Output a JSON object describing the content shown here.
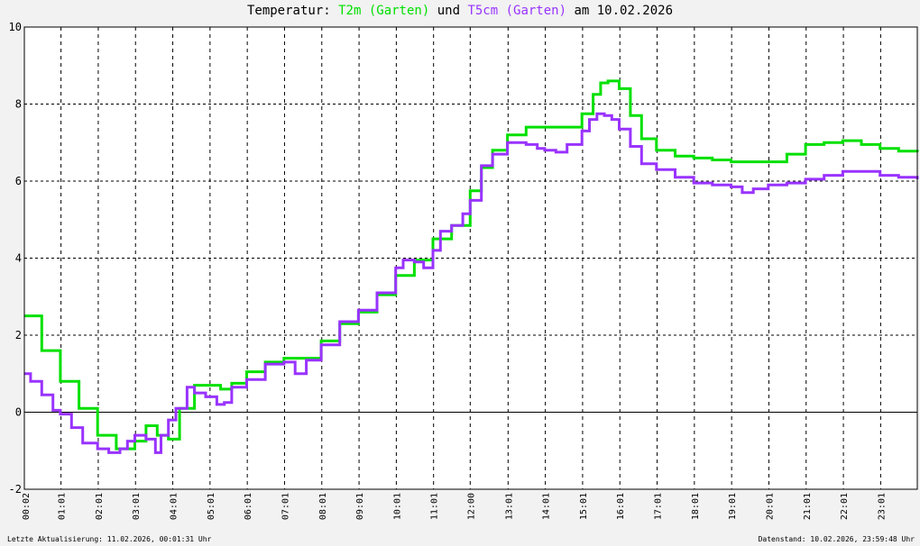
{
  "chart_data": {
    "type": "line",
    "title": {
      "prefix": "Temperatur: ",
      "series1": "T2m (Garten)",
      "middle": " und ",
      "series2": "T5cm (Garten)",
      "suffix": " am 10.02.2026"
    },
    "xlabel": "",
    "ylabel": "",
    "ylim": [
      -2,
      10
    ],
    "yticks": [
      -2,
      0,
      2,
      4,
      6,
      8,
      10
    ],
    "xlim": [
      0.0333,
      24.0
    ],
    "xtick_labels": [
      "00:02",
      "01:01",
      "02:01",
      "03:01",
      "04:01",
      "05:01",
      "06:01",
      "07:01",
      "08:01",
      "09:01",
      "10:01",
      "11:01",
      "12:00",
      "13:01",
      "14:01",
      "15:01",
      "16:01",
      "17:01",
      "18:01",
      "19:01",
      "20:01",
      "21:01",
      "22:01",
      "23:01"
    ],
    "xtick_hours": [
      0.0333,
      1.0167,
      2.0167,
      3.0167,
      4.0167,
      5.0167,
      6.0167,
      7.0167,
      8.0167,
      9.0167,
      10.0167,
      11.0167,
      12.0,
      13.0167,
      14.0167,
      15.0167,
      16.0167,
      17.0167,
      18.0167,
      19.0167,
      20.0167,
      21.0167,
      22.0167,
      23.0167
    ],
    "grid": true,
    "zero_line": true,
    "series": [
      {
        "name": "T2m (Garten)",
        "color": "#00e000",
        "x": [
          0.03,
          0.5,
          1.0,
          1.5,
          2.0,
          2.5,
          3.0,
          3.3,
          3.6,
          3.9,
          4.2,
          4.6,
          5.0,
          5.3,
          5.6,
          6.0,
          6.5,
          7.0,
          7.5,
          8.0,
          8.5,
          9.0,
          9.5,
          10.0,
          10.5,
          11.0,
          11.5,
          12.0,
          12.3,
          12.6,
          13.0,
          13.5,
          14.0,
          14.5,
          15.0,
          15.3,
          15.5,
          15.7,
          16.0,
          16.3,
          16.6,
          17.0,
          17.5,
          18.0,
          18.5,
          19.0,
          19.5,
          20.0,
          20.5,
          21.0,
          21.5,
          22.0,
          22.5,
          23.0,
          23.5,
          24.0
        ],
        "y": [
          2.5,
          1.6,
          0.8,
          0.1,
          -0.6,
          -0.95,
          -0.75,
          -0.35,
          -0.6,
          -0.7,
          0.1,
          0.7,
          0.7,
          0.6,
          0.75,
          1.05,
          1.3,
          1.4,
          1.4,
          1.85,
          2.3,
          2.6,
          3.05,
          3.55,
          3.95,
          4.5,
          4.85,
          5.75,
          6.35,
          6.8,
          7.2,
          7.4,
          7.4,
          7.4,
          7.75,
          8.25,
          8.55,
          8.6,
          8.4,
          7.7,
          7.1,
          6.8,
          6.65,
          6.6,
          6.55,
          6.5,
          6.5,
          6.5,
          6.7,
          6.95,
          7.0,
          7.05,
          6.95,
          6.85,
          6.78,
          6.75
        ]
      },
      {
        "name": "T5cm (Garten)",
        "color": "#9933ff",
        "x": [
          0.03,
          0.2,
          0.5,
          0.8,
          1.0,
          1.3,
          1.6,
          2.0,
          2.3,
          2.6,
          2.8,
          3.0,
          3.3,
          3.55,
          3.7,
          3.9,
          4.1,
          4.4,
          4.6,
          4.9,
          5.2,
          5.4,
          5.6,
          6.0,
          6.5,
          7.0,
          7.3,
          7.6,
          8.0,
          8.5,
          9.0,
          9.5,
          10.0,
          10.2,
          10.5,
          10.75,
          11.0,
          11.2,
          11.5,
          11.8,
          12.0,
          12.3,
          12.6,
          13.0,
          13.5,
          13.8,
          14.0,
          14.3,
          14.6,
          15.0,
          15.2,
          15.4,
          15.6,
          15.8,
          16.0,
          16.3,
          16.6,
          17.0,
          17.5,
          18.0,
          18.5,
          19.0,
          19.3,
          19.6,
          20.0,
          20.5,
          21.0,
          21.5,
          22.0,
          22.5,
          23.0,
          23.5,
          24.0
        ],
        "y": [
          1.0,
          0.8,
          0.45,
          0.05,
          -0.05,
          -0.4,
          -0.8,
          -0.95,
          -1.05,
          -0.95,
          -0.75,
          -0.6,
          -0.7,
          -1.05,
          -0.6,
          -0.2,
          0.1,
          0.65,
          0.5,
          0.4,
          0.2,
          0.25,
          0.65,
          0.85,
          1.25,
          1.3,
          1.0,
          1.35,
          1.75,
          2.35,
          2.65,
          3.1,
          3.75,
          3.95,
          3.9,
          3.75,
          4.2,
          4.7,
          4.85,
          5.15,
          5.5,
          6.4,
          6.7,
          7.0,
          6.95,
          6.85,
          6.8,
          6.75,
          6.95,
          7.3,
          7.6,
          7.75,
          7.7,
          7.6,
          7.35,
          6.9,
          6.45,
          6.3,
          6.1,
          5.95,
          5.9,
          5.85,
          5.7,
          5.8,
          5.9,
          5.95,
          6.05,
          6.15,
          6.25,
          6.25,
          6.15,
          6.1,
          6.05
        ]
      }
    ]
  },
  "footer": {
    "left": "Letzte Aktualisierung: 11.02.2026, 00:01:31 Uhr",
    "right": "Datenstand: 10.02.2026, 23:59:48 Uhr"
  }
}
